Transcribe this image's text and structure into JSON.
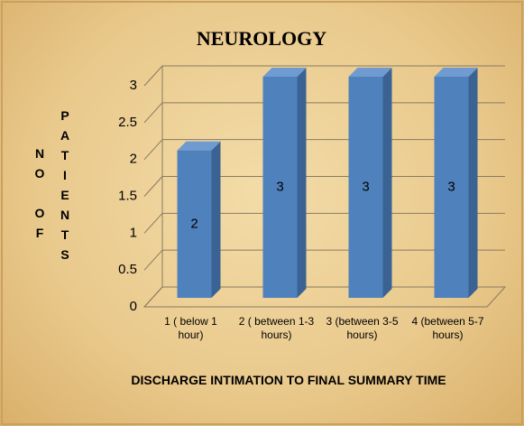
{
  "chart_data": {
    "type": "bar3d",
    "title": "NEUROLOGY",
    "categories": [
      "1 ( below 1 hour)",
      "2 ( between 1-3 hours)",
      "3 (between 3-5 hours)",
      "4 (between 5-7 hours)"
    ],
    "values": [
      2,
      3,
      3,
      3
    ],
    "color": "#4f81bd",
    "ylim": [
      0,
      3
    ],
    "yticks": [
      0,
      0.5,
      1,
      1.5,
      2,
      2.5,
      3
    ],
    "grid": true,
    "ylabel": [
      "NO OF",
      "PATIENTS"
    ],
    "xlabel": "DISCHARGE INTIMATION TO FINAL SUMMARY TIME"
  }
}
